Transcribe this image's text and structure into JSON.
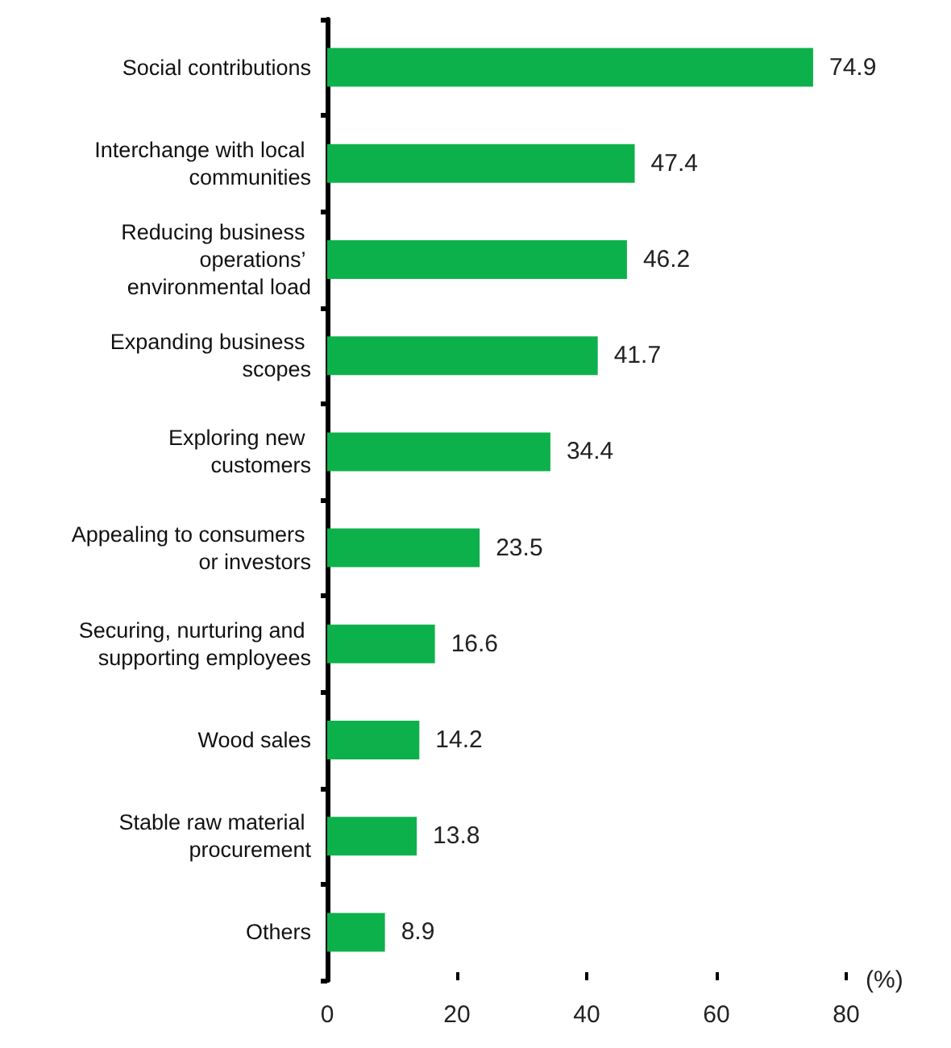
{
  "chart_data": {
    "type": "bar",
    "orientation": "horizontal",
    "xlabel": "(%)",
    "categories": [
      "Social contributions",
      "Interchange with local communities",
      "Reducing business operations’ environmental load",
      "Expanding business scopes",
      "Exploring new customers",
      "Appealing to consumers or investors",
      "Securing, nurturing and supporting employees",
      "Wood sales",
      "Stable raw material procurement",
      "Others"
    ],
    "values": [
      74.9,
      47.4,
      46.2,
      41.7,
      34.4,
      23.5,
      16.6,
      14.2,
      13.8,
      8.9
    ],
    "color": "#0db14b",
    "xlim": [
      0,
      80
    ],
    "xticks": [
      0,
      20,
      40,
      60,
      80
    ],
    "data_labels": true
  }
}
